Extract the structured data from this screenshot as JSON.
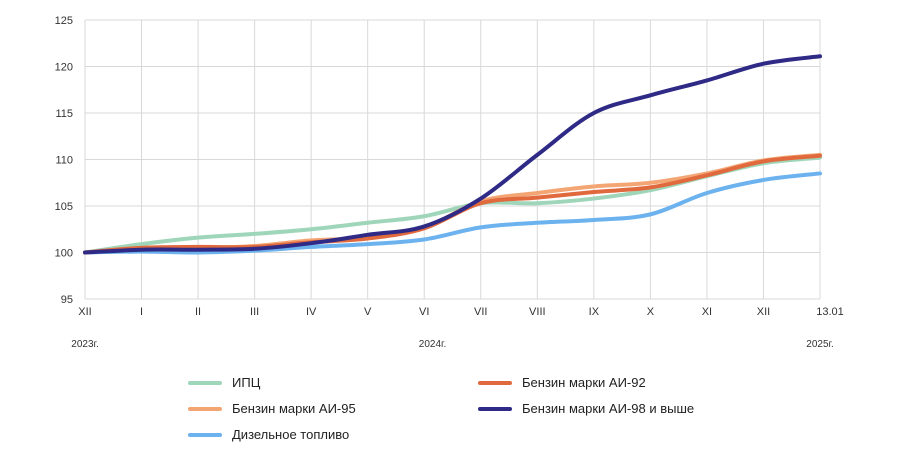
{
  "chart_data": {
    "type": "line",
    "title": "",
    "xlabel": "",
    "ylabel": "",
    "ylim": [
      95,
      125
    ],
    "yticks": [
      "95",
      "100",
      "105",
      "110",
      "115",
      "120",
      "125"
    ],
    "categories": [
      "XII",
      "I",
      "II",
      "III",
      "IV",
      "V",
      "VI",
      "VII",
      "VIII",
      "IX",
      "X",
      "XI",
      "XII",
      "13.01"
    ],
    "year_labels": [
      "2023г.",
      "2024г.",
      "2025г."
    ],
    "grid": true,
    "series": [
      {
        "name": "ИПЦ",
        "color": "#9fd6b9",
        "values": [
          100,
          100.9,
          101.6,
          102.0,
          102.5,
          103.2,
          103.9,
          105.3,
          105.3,
          105.8,
          106.7,
          108.2,
          109.6,
          110.2
        ]
      },
      {
        "name": "Бензин марки АИ-92",
        "color": "#e06a3e",
        "values": [
          100,
          100.5,
          100.6,
          100.6,
          101.1,
          101.5,
          102.6,
          105.3,
          105.9,
          106.5,
          107.0,
          108.3,
          109.8,
          110.4
        ]
      },
      {
        "name": "Бензин марки АИ-95",
        "color": "#f4a574",
        "values": [
          100,
          100.5,
          100.5,
          100.7,
          101.3,
          101.6,
          102.7,
          105.5,
          106.4,
          107.1,
          107.5,
          108.5,
          109.9,
          110.5
        ]
      },
      {
        "name": "Бензин марки АИ-98 и выше",
        "color": "#2e2a85",
        "values": [
          100,
          100.3,
          100.3,
          100.4,
          101.0,
          101.9,
          102.8,
          105.8,
          110.5,
          115.0,
          116.9,
          118.5,
          120.3,
          121.1
        ]
      },
      {
        "name": "Дизельное топливо",
        "color": "#6cb2ef",
        "values": [
          100,
          100.1,
          100.0,
          100.2,
          100.6,
          100.9,
          101.4,
          102.7,
          103.2,
          103.5,
          104.1,
          106.4,
          107.8,
          108.5
        ]
      }
    ],
    "legend_position": "bottom"
  },
  "legend": {
    "items": [
      {
        "label": "ИПЦ",
        "color": "#9fd6b9"
      },
      {
        "label": "Бензин марки АИ-92",
        "color": "#e06a3e"
      },
      {
        "label": "Бензин марки АИ-95",
        "color": "#f4a574"
      },
      {
        "label": "Бензин марки АИ-98 и выше",
        "color": "#2e2a85"
      },
      {
        "label": "Дизельное топливо",
        "color": "#6cb2ef"
      }
    ]
  }
}
